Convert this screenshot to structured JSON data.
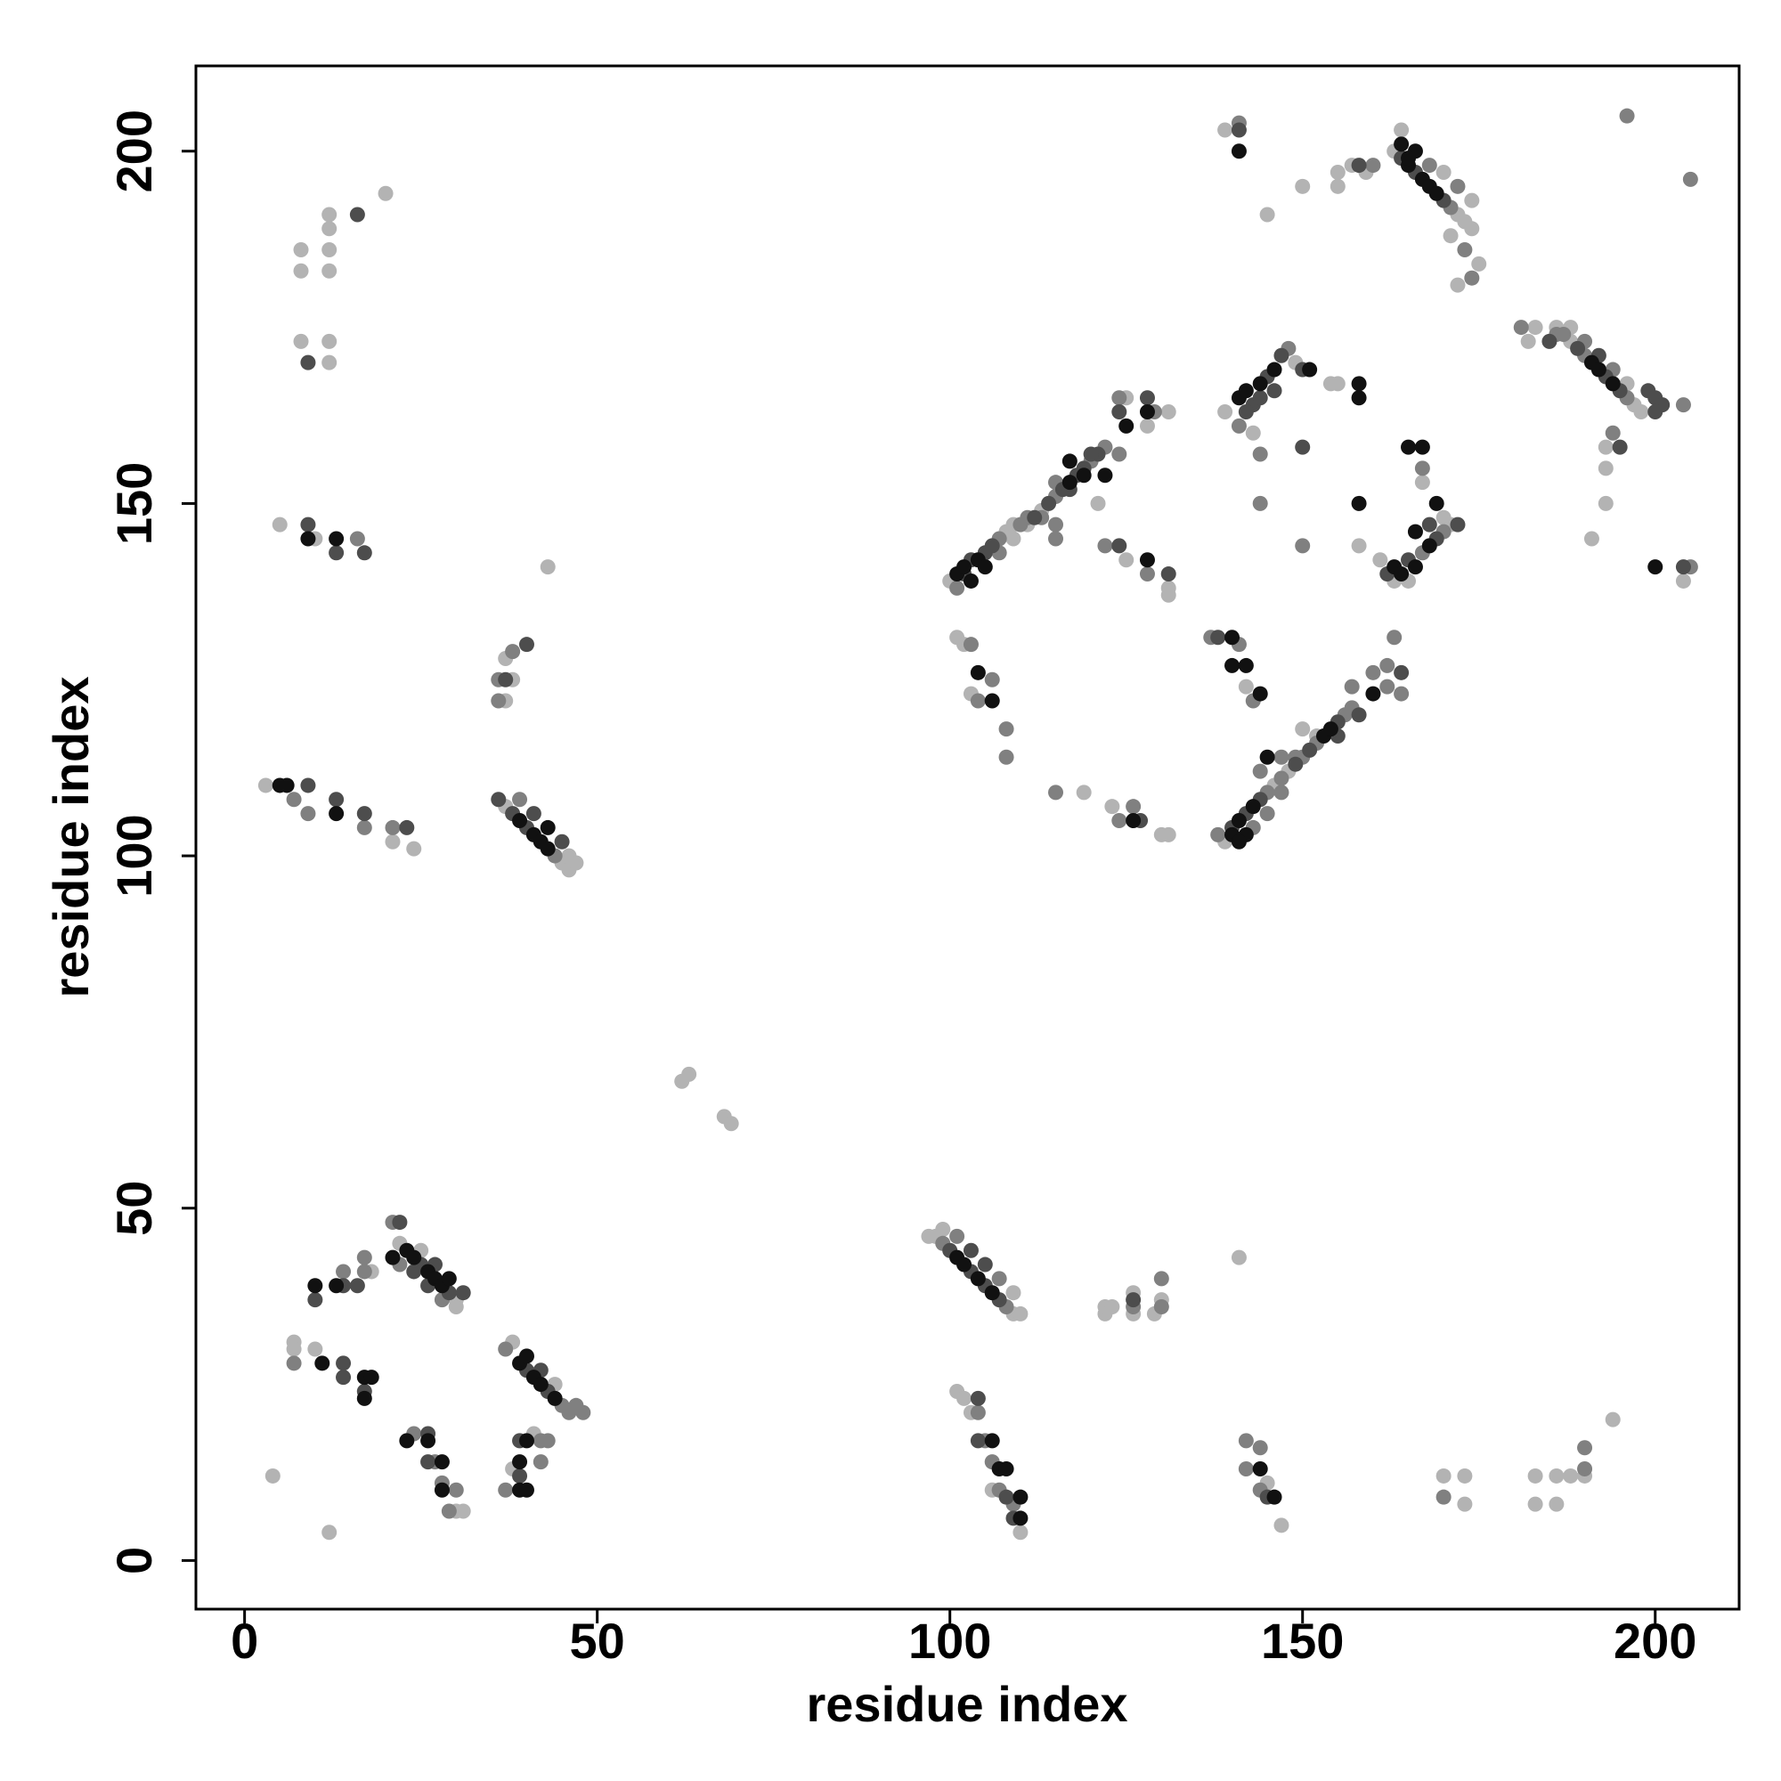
{
  "chart_data": {
    "type": "scatter",
    "xlabel": "residue index",
    "ylabel": "residue index",
    "xlim": [
      -6.9,
      211.9
    ],
    "ylim": [
      -6.9,
      212.1
    ],
    "xticks": [
      0,
      50,
      100,
      150,
      200
    ],
    "yticks": [
      0,
      50,
      100,
      150,
      200
    ],
    "series": [
      {
        "color": "#b3b3b3",
        "x": [
          8,
          8,
          12,
          20,
          8,
          12,
          12,
          12,
          12,
          12,
          5,
          10,
          3,
          21,
          24,
          37,
          45,
          46,
          46,
          47,
          38,
          37,
          37,
          43,
          22,
          30,
          25,
          30,
          18,
          7,
          7,
          10,
          30,
          31,
          38,
          44,
          41,
          38,
          4,
          12,
          62,
          63,
          68,
          69,
          97,
          98,
          109,
          99,
          109,
          110,
          101,
          102,
          103,
          106,
          110,
          122,
          122,
          123,
          126,
          126,
          129,
          130,
          141,
          147,
          145,
          170,
          173,
          173,
          183,
          183,
          186,
          186,
          188,
          190,
          194,
          100,
          108,
          109,
          113,
          109,
          111,
          121,
          125,
          128,
          131,
          125,
          131,
          131,
          101,
          102,
          103,
          119,
          123,
          130,
          131,
          139,
          146,
          148,
          150,
          152,
          139,
          149,
          143,
          155,
          154,
          158,
          171,
          163,
          165,
          170,
          167,
          161,
          155,
          157,
          159,
          163,
          172,
          173,
          174,
          170,
          174,
          175,
          172,
          171,
          164,
          139,
          145,
          150,
          155,
          182,
          183,
          186,
          188,
          197,
          198,
          188,
          196,
          193,
          193,
          193,
          191,
          204,
          142
        ],
        "values": [
          186,
          183,
          191,
          194,
          173,
          173,
          170,
          186,
          183,
          189,
          147,
          145,
          110,
          102,
          101,
          107,
          99,
          98,
          100,
          99,
          125,
          122,
          128,
          141,
          45,
          37,
          44,
          36,
          41,
          31,
          30,
          30,
          7,
          7,
          31,
          25,
          18,
          13,
          12,
          4,
          68,
          69,
          63,
          62,
          46,
          46,
          35,
          47,
          38,
          35,
          24,
          23,
          21,
          10,
          4,
          35,
          36,
          36,
          35,
          38,
          35,
          37,
          43,
          5,
          11,
          12,
          12,
          8,
          12,
          8,
          12,
          8,
          12,
          12,
          20,
          139,
          146,
          147,
          149,
          145,
          147,
          150,
          165,
          161,
          163,
          142,
          138,
          137,
          131,
          130,
          123,
          109,
          107,
          103,
          103,
          102,
          110,
          112,
          118,
          117,
          163,
          170,
          160,
          167,
          167,
          144,
          147,
          139,
          139,
          148,
          153,
          142,
          197,
          198,
          197,
          200,
          191,
          190,
          189,
          197,
          193,
          184,
          181,
          188,
          203,
          203,
          191,
          195,
          195,
          173,
          175,
          175,
          173,
          164,
          163,
          175,
          167,
          158,
          155,
          150,
          145,
          139,
          124
        ]
      },
      {
        "color": "#808080",
        "x": [
          16,
          7,
          9,
          17,
          21,
          39,
          44,
          36,
          36,
          38,
          21,
          22,
          28,
          14,
          17,
          17,
          7,
          24,
          27,
          28,
          29,
          30,
          37,
          45,
          46,
          47,
          48,
          42,
          43,
          37,
          42,
          99,
          108,
          101,
          107,
          104,
          105,
          106,
          107,
          109,
          126,
          130,
          130,
          142,
          142,
          144,
          144,
          170,
          190,
          190,
          101,
          107,
          110,
          111,
          115,
          120,
          122,
          107,
          113,
          115,
          115,
          115,
          124,
          129,
          124,
          122,
          128,
          103,
          104,
          106,
          108,
          108,
          115,
          124,
          126,
          138,
          145,
          147,
          150,
          152,
          156,
          157,
          143,
          145,
          147,
          144,
          147,
          149,
          157,
          137,
          141,
          143,
          148,
          141,
          144,
          144,
          150,
          167,
          170,
          167,
          160,
          162,
          162,
          163,
          164,
          160,
          171,
          168,
          172,
          173,
          174,
          141,
          181,
          187,
          190,
          196,
          186,
          190,
          194,
          204,
          194,
          196,
          205,
          205
        ],
        "values": [
          145,
          108,
          106,
          104,
          104,
          108,
          100,
          125,
          122,
          129,
          48,
          42,
          37,
          41,
          41,
          43,
          28,
          18,
          14,
          11,
          7,
          10,
          30,
          22,
          21,
          22,
          21,
          17,
          17,
          10,
          14,
          45,
          36,
          46,
          40,
          21,
          17,
          14,
          10,
          8,
          36,
          36,
          40,
          17,
          13,
          16,
          10,
          9,
          13,
          16,
          138,
          145,
          147,
          148,
          151,
          156,
          158,
          143,
          148,
          147,
          153,
          145,
          165,
          163,
          157,
          144,
          140,
          130,
          122,
          125,
          118,
          114,
          109,
          105,
          107,
          103,
          109,
          111,
          114,
          116,
          120,
          121,
          104,
          106,
          109,
          112,
          114,
          114,
          124,
          131,
          130,
          122,
          172,
          161,
          157,
          150,
          144,
          143,
          146,
          155,
          126,
          127,
          124,
          131,
          123,
          198,
          192,
          198,
          195,
          186,
          182,
          204,
          175,
          174,
          171,
          165,
          174,
          173,
          169,
          164,
          160,
          205,
          196,
          141
        ]
      },
      {
        "color": "#4d4d4d",
        "x": [
          9,
          13,
          17,
          9,
          13,
          17,
          23,
          36,
          38,
          40,
          41,
          45,
          37,
          40,
          22,
          25,
          29,
          24,
          26,
          27,
          31,
          10,
          14,
          16,
          14,
          14,
          17,
          26,
          26,
          40,
          43,
          42,
          39,
          39,
          100,
          103,
          105,
          107,
          103,
          105,
          104,
          104,
          108,
          109,
          126,
          145,
          102,
          103,
          105,
          106,
          112,
          114,
          116,
          118,
          119,
          121,
          117,
          120,
          124,
          128,
          124,
          131,
          127,
          140,
          142,
          144,
          149,
          151,
          155,
          158,
          155,
          138,
          143,
          145,
          147,
          150,
          142,
          144,
          146,
          150,
          165,
          169,
          172,
          168,
          162,
          164,
          158,
          164,
          166,
          170,
          141,
          185,
          189,
          193,
          195,
          192,
          199,
          200,
          201,
          200,
          195,
          204,
          16,
          9
        ],
        "values": [
          147,
          143,
          143,
          110,
          108,
          106,
          104,
          108,
          106,
          104,
          106,
          102,
          125,
          130,
          48,
          42,
          38,
          41,
          39,
          42,
          38,
          37,
          39,
          39,
          28,
          26,
          24,
          18,
          14,
          27,
          24,
          27,
          17,
          12,
          44,
          41,
          39,
          37,
          44,
          42,
          23,
          17,
          9,
          6,
          37,
          9,
          140,
          142,
          143,
          144,
          148,
          150,
          152,
          154,
          155,
          157,
          152,
          157,
          163,
          165,
          144,
          140,
          105,
          104,
          106,
          108,
          113,
          115,
          119,
          120,
          117,
          131,
          164,
          168,
          171,
          169,
          163,
          165,
          166,
          158,
          142,
          145,
          147,
          147,
          140,
          126,
          198,
          199,
          197,
          193,
          203,
          173,
          172,
          168,
          166,
          171,
          166,
          165,
          164,
          163,
          158,
          141,
          191,
          170
        ]
      },
      {
        "color": "#111111",
        "x": [
          13,
          9,
          5,
          6,
          13,
          39,
          41,
          42,
          43,
          43,
          23,
          24,
          26,
          27,
          28,
          21,
          29,
          10,
          13,
          11,
          17,
          18,
          17,
          23,
          26,
          28,
          28,
          39,
          41,
          42,
          44,
          40,
          40,
          39,
          39,
          40,
          101,
          102,
          104,
          106,
          106,
          107,
          108,
          110,
          110,
          144,
          146,
          101,
          102,
          104,
          117,
          103,
          105,
          119,
          117,
          122,
          125,
          128,
          128,
          104,
          106,
          126,
          140,
          141,
          142,
          143,
          153,
          154,
          141,
          145,
          140,
          140,
          142,
          144,
          141,
          142,
          144,
          146,
          151,
          158,
          158,
          158,
          163,
          164,
          166,
          168,
          166,
          169,
          165,
          167,
          160,
          165,
          167,
          168,
          169,
          164,
          166,
          165,
          141,
          191,
          192,
          194,
          200
        ],
        "values": [
          145,
          145,
          110,
          110,
          106,
          105,
          103,
          102,
          101,
          104,
          44,
          43,
          41,
          40,
          39,
          43,
          40,
          39,
          39,
          28,
          26,
          26,
          23,
          17,
          17,
          14,
          10,
          28,
          26,
          25,
          23,
          29,
          17,
          14,
          10,
          10,
          43,
          42,
          40,
          38,
          17,
          13,
          13,
          9,
          6,
          13,
          9,
          140,
          141,
          142,
          153,
          139,
          141,
          154,
          156,
          154,
          161,
          163,
          142,
          126,
          122,
          105,
          103,
          105,
          103,
          107,
          117,
          118,
          102,
          114,
          131,
          127,
          127,
          123,
          165,
          166,
          167,
          169,
          169,
          167,
          165,
          150,
          141,
          140,
          141,
          144,
          146,
          150,
          158,
          158,
          123,
          198,
          196,
          195,
          194,
          201,
          200,
          199,
          200,
          170,
          169,
          167,
          141
        ]
      }
    ]
  }
}
